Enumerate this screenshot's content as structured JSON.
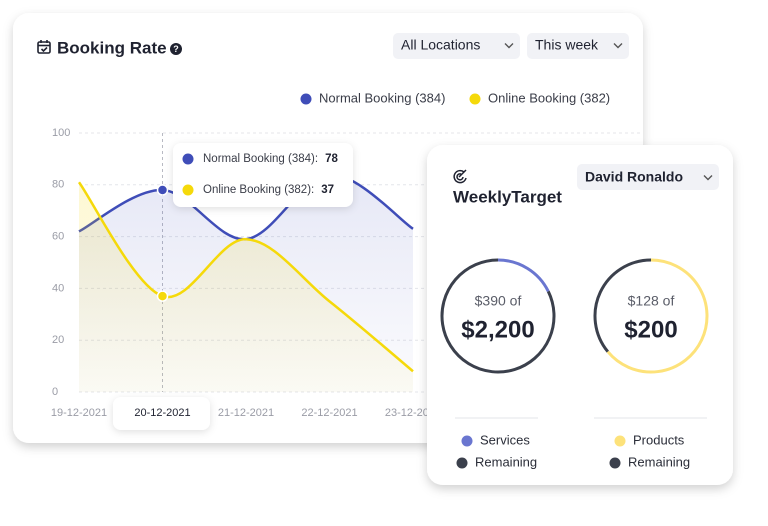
{
  "booking_card": {
    "title": "Booking Rate",
    "filters": [
      "All Locations",
      "This week"
    ]
  },
  "chart_data": [
    {
      "type": "line",
      "x": [
        "19-12-2021",
        "20-12-2021",
        "21-12-2021",
        "22-12-2021",
        "23-12-2021"
      ],
      "series": [
        {
          "name": "Normal Booking (384)",
          "color": "#3f4db8",
          "values": [
            62,
            78,
            59,
            84,
            63
          ]
        },
        {
          "name": "Online Booking (382)",
          "color": "#f5d90a",
          "values": [
            81,
            37,
            59,
            35,
            8
          ]
        }
      ],
      "tooltip_labels": [
        "Normal Booking (384):",
        "Online Booking (382):"
      ],
      "ylim": [
        0,
        100
      ],
      "yticks": [
        0,
        20,
        40,
        60,
        80,
        100
      ],
      "grid": true
    },
    {
      "type": "donut",
      "value": 390,
      "total": 2200,
      "value_label": "$390 of",
      "total_label": "$2,200",
      "legend": [
        {
          "name": "Services",
          "color": "#6a76d0"
        },
        {
          "name": "Remaining",
          "color": "#3b404c"
        }
      ]
    },
    {
      "type": "donut",
      "value": 128,
      "total": 200,
      "value_label": "$128 of",
      "total_label": "$200",
      "legend": [
        {
          "name": "Products",
          "color": "#fde27a"
        },
        {
          "name": "Remaining",
          "color": "#3b404c"
        }
      ]
    }
  ],
  "target_card": {
    "title": "WeeklyTarget",
    "selector": "David Ronaldo"
  }
}
